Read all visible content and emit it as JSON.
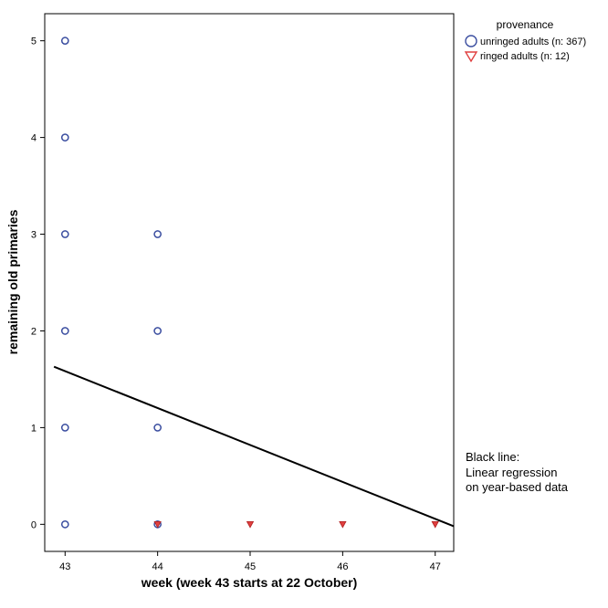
{
  "chart_data": {
    "type": "scatter",
    "title": "",
    "xlabel": "week (week 43 starts at  22 October)",
    "ylabel": "remaining old primaries",
    "xlim": [
      42.78,
      47.2
    ],
    "ylim": [
      -0.28,
      5.28
    ],
    "xticks": [
      43,
      44,
      45,
      46,
      47
    ],
    "yticks": [
      0,
      1,
      2,
      3,
      4,
      5
    ],
    "grid": false,
    "legend": {
      "placement": "top-right outside",
      "title": "provenance"
    },
    "series": [
      {
        "name": "unringed adults (n: 367)",
        "marker": "circle",
        "color": "#3b4ea0",
        "points": [
          [
            43,
            0
          ],
          [
            43,
            1
          ],
          [
            43,
            2
          ],
          [
            43,
            3
          ],
          [
            43,
            4
          ],
          [
            43,
            5
          ],
          [
            44,
            0
          ],
          [
            44,
            1
          ],
          [
            44,
            2
          ],
          [
            44,
            3
          ]
        ]
      },
      {
        "name": "ringed adults (n: 12)",
        "marker": "triangle-down",
        "color": "#e04040",
        "points": [
          [
            44,
            0
          ],
          [
            45,
            0
          ],
          [
            46,
            0
          ],
          [
            47,
            0
          ]
        ]
      }
    ],
    "regression_line": {
      "color": "#000000",
      "from": [
        42.88,
        1.63
      ],
      "to": [
        47.2,
        -0.02
      ]
    },
    "note_lines": [
      "Black line:",
      "Linear regression",
      "on year-based data"
    ]
  }
}
